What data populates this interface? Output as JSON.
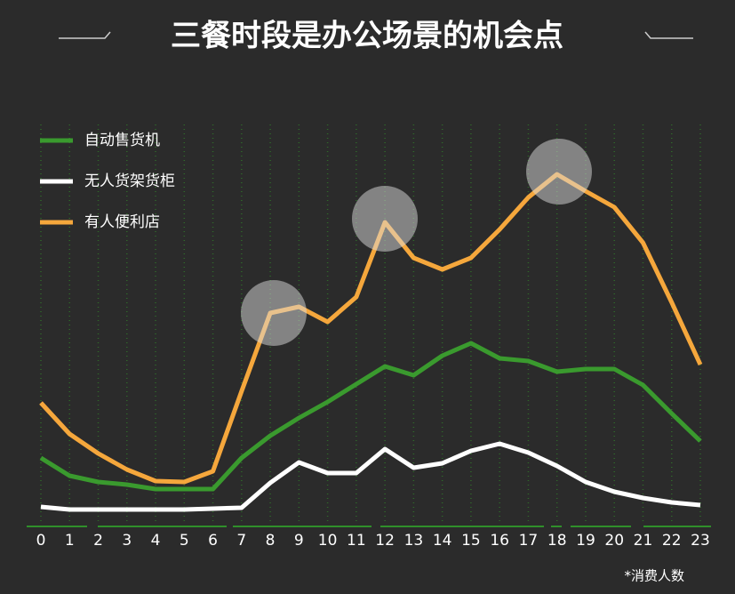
{
  "chart_data": {
    "type": "line",
    "title": "三餐时段是办公场景的机会点",
    "note": "*消费人数",
    "categories": [
      "0",
      "1",
      "2",
      "3",
      "4",
      "5",
      "6",
      "7",
      "8",
      "9",
      "10",
      "11",
      "12",
      "13",
      "14",
      "15",
      "16",
      "17",
      "18",
      "19",
      "20",
      "21",
      "22",
      "23"
    ],
    "series": [
      {
        "name": "自动售货机",
        "color": "#3a9a2e",
        "values": [
          15,
          11,
          9.6,
          9,
          8,
          8,
          8,
          15,
          20,
          24,
          27.6,
          31.6,
          35.6,
          33.6,
          38,
          40.8,
          37.4,
          36.8,
          34.4,
          35,
          35,
          31.4,
          25,
          18.8
        ]
      },
      {
        "name": "无人货架货柜",
        "color": "#ffffff",
        "values": [
          4,
          3.4,
          3.4,
          3.4,
          3.4,
          3.4,
          3.6,
          3.8,
          9.4,
          14,
          11.6,
          11.6,
          17,
          12.8,
          13.8,
          16.6,
          18.2,
          16.2,
          13.2,
          9.6,
          7.4,
          6,
          5,
          4.4
        ]
      },
      {
        "name": "有人便利店",
        "color": "#f5a73c",
        "values": [
          27.4,
          20.4,
          16,
          12.4,
          9.8,
          9.6,
          12,
          30,
          47.6,
          49,
          45.6,
          51.2,
          68,
          60,
          57.4,
          60,
          66.4,
          73.6,
          78.8,
          75,
          71.4,
          63.4,
          50,
          36
        ]
      }
    ],
    "ylim": [
      0,
      100
    ],
    "grid": true
  }
}
